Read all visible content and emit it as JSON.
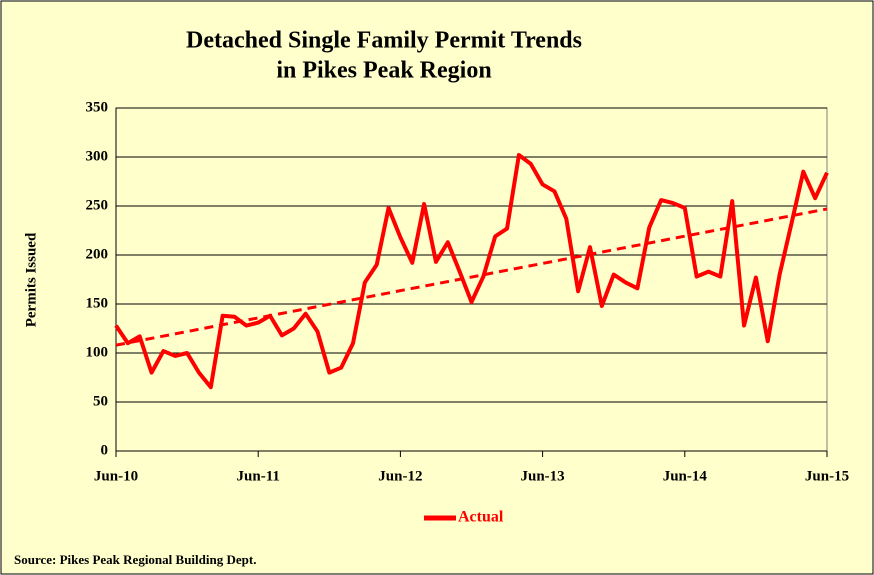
{
  "chart_data": {
    "type": "line",
    "title": [
      "Detached Single Family Permit Trends",
      "in Pikes Peak Region"
    ],
    "y_label": "Permits Issued",
    "source": "Source: Pikes Peak Regional Building Dept.",
    "categories": [
      "Jun-10",
      null,
      null,
      null,
      null,
      null,
      null,
      null,
      null,
      null,
      null,
      null,
      "Jun-11",
      null,
      null,
      null,
      null,
      null,
      null,
      null,
      null,
      null,
      null,
      null,
      "Jun-12",
      null,
      null,
      null,
      null,
      null,
      null,
      null,
      null,
      null,
      null,
      null,
      "Jun-13",
      null,
      null,
      null,
      null,
      null,
      null,
      null,
      null,
      null,
      null,
      null,
      "Jun-14",
      null,
      null,
      null,
      null,
      null,
      null,
      null,
      null,
      null,
      null,
      null,
      "Jun-15"
    ],
    "series": [
      {
        "name": "Actual",
        "color": "#ff0000",
        "values": [
          128,
          110,
          117,
          80,
          102,
          97,
          100,
          80,
          65,
          138,
          137,
          128,
          131,
          138,
          118,
          125,
          140,
          122,
          80,
          85,
          110,
          172,
          190,
          248,
          218,
          192,
          252,
          193,
          213,
          183,
          152,
          178,
          219,
          227,
          302,
          293,
          272,
          265,
          237,
          163,
          208,
          148,
          180,
          172,
          166,
          228,
          256,
          253,
          248,
          178,
          183,
          178,
          255,
          128,
          177,
          112,
          180,
          232,
          285,
          258,
          284
        ]
      }
    ],
    "trendline": {
      "color": "#ff0000",
      "values": [
        108,
        247
      ]
    },
    "ylim": [
      0,
      350
    ],
    "yticks": [
      0,
      50,
      100,
      150,
      200,
      250,
      300,
      350
    ],
    "grid": true,
    "legend": "bottom"
  }
}
